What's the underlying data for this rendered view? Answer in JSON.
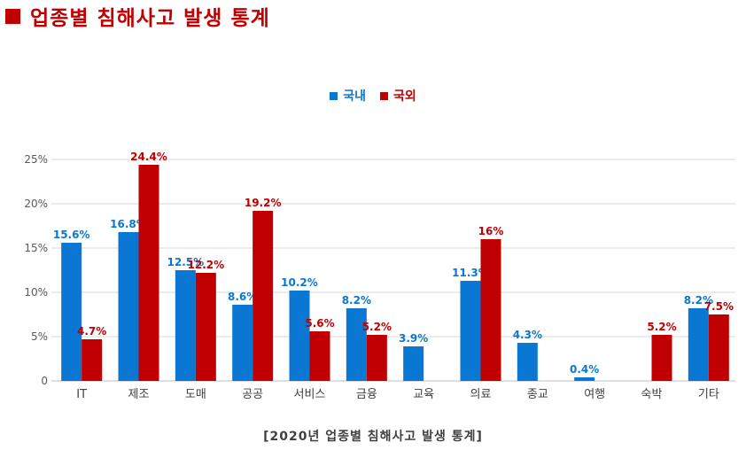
{
  "title": {
    "text": "업종별 침해사고 발생 통계",
    "color": "#c00000"
  },
  "caption": "[2020년 업종별 침해사고 발생 통계]",
  "chart_data": {
    "type": "bar",
    "categories": [
      "IT",
      "제조",
      "도매",
      "공공",
      "서비스",
      "금융",
      "교육",
      "의료",
      "종교",
      "여행",
      "숙박",
      "기타"
    ],
    "series": [
      {
        "name": "국내",
        "color": "#0a78d2",
        "values": [
          15.6,
          16.8,
          12.5,
          8.6,
          10.2,
          8.2,
          3.9,
          11.3,
          4.3,
          0.4,
          null,
          8.2
        ],
        "labels": [
          "15.6%",
          "16.8%",
          "12.5%",
          "8.6%",
          "10.2%",
          "8.2%",
          "3.9%",
          "11.3%",
          "4.3%",
          "0.4%",
          "",
          "8.2%"
        ]
      },
      {
        "name": "국외",
        "color": "#c00000",
        "values": [
          4.7,
          24.4,
          12.2,
          19.2,
          5.6,
          5.2,
          null,
          16,
          null,
          null,
          5.2,
          7.5
        ],
        "labels": [
          "4.7%",
          "24.4%",
          "12.2%",
          "19.2%",
          "5.6%",
          "5.2%",
          "",
          "16%",
          "",
          "",
          "5.2%",
          "7.5%"
        ]
      }
    ],
    "y_ticks": [
      "0",
      "5%",
      "10%",
      "15%",
      "20%",
      "25%"
    ],
    "ylim": [
      0,
      27.5
    ],
    "grid": true,
    "legend_position": "top-center"
  }
}
